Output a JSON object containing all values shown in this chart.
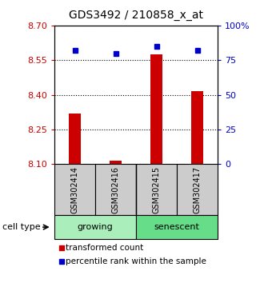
{
  "title": "GDS3492 / 210858_x_at",
  "samples": [
    "GSM302414",
    "GSM302416",
    "GSM302415",
    "GSM302417"
  ],
  "red_values": [
    8.32,
    8.115,
    8.575,
    8.415
  ],
  "blue_values": [
    82,
    80,
    85,
    82
  ],
  "ylim_left": [
    8.1,
    8.7
  ],
  "ylim_right": [
    0,
    100
  ],
  "left_ticks": [
    8.1,
    8.25,
    8.4,
    8.55,
    8.7
  ],
  "right_ticks": [
    0,
    25,
    50,
    75,
    100
  ],
  "right_tick_labels": [
    "0",
    "25",
    "50",
    "75",
    "100%"
  ],
  "left_tick_color": "#cc0000",
  "right_tick_color": "#0000cc",
  "bar_color": "#cc0000",
  "dot_color": "#0000cc",
  "groups": [
    {
      "label": "growing",
      "indices": [
        0,
        1
      ],
      "color": "#aaeebb"
    },
    {
      "label": "senescent",
      "indices": [
        2,
        3
      ],
      "color": "#66dd88"
    }
  ],
  "cell_type_label": "cell type",
  "legend_red": "transformed count",
  "legend_blue": "percentile rank within the sample",
  "sample_box_color": "#cccccc",
  "background_color": "#ffffff",
  "bar_width": 0.28,
  "dot_size": 5
}
